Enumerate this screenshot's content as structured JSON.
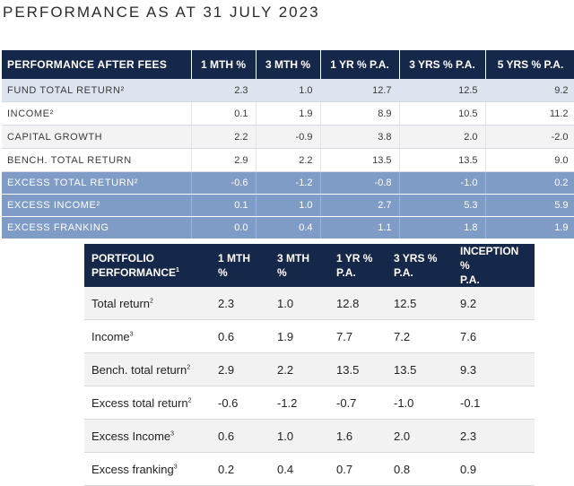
{
  "heading": "PERFORMANCE AS AT 31 JULY 2023",
  "after_fees": {
    "headers": [
      "PERFORMANCE AFTER FEES",
      "1 MTH %",
      "3 MTH %",
      "1 YR % P.A.",
      "3 YRS % P.A.",
      "5 YRS % P.A."
    ],
    "rows": [
      {
        "label": "FUND TOTAL RETURN²",
        "values": [
          "2.3",
          "1.0",
          "12.7",
          "12.5",
          "9.2"
        ]
      },
      {
        "label": "INCOME²",
        "values": [
          "0.1",
          "1.9",
          "8.9",
          "10.5",
          "11.2"
        ]
      },
      {
        "label": "CAPITAL GROWTH",
        "values": [
          "2.2",
          "-0.9",
          "3.8",
          "2.0",
          "-2.0"
        ]
      },
      {
        "label": "BENCH. TOTAL RETURN",
        "values": [
          "2.9",
          "2.2",
          "13.5",
          "13.5",
          "9.0"
        ]
      },
      {
        "label": "EXCESS TOTAL RETURN²",
        "values": [
          "-0.6",
          "-1.2",
          "-0.8",
          "-1.0",
          "0.2"
        ]
      },
      {
        "label": "EXCESS INCOME²",
        "values": [
          "0.1",
          "1.0",
          "2.7",
          "5.3",
          "5.9"
        ]
      },
      {
        "label": "EXCESS FRANKING",
        "values": [
          "0.0",
          "0.4",
          "1.1",
          "1.8",
          "1.9"
        ]
      }
    ]
  },
  "portfolio": {
    "headers": [
      {
        "l1": "PORTFOLIO",
        "l2": "PERFORMANCE",
        "sup": "1"
      },
      {
        "l1": "1 MTH",
        "l2": "%",
        "sup": ""
      },
      {
        "l1": "3 MTH",
        "l2": "%",
        "sup": ""
      },
      {
        "l1": "1 YR %",
        "l2": "P.A.",
        "sup": ""
      },
      {
        "l1": "3 YRS %",
        "l2": "P.A.",
        "sup": ""
      },
      {
        "l1": "INCEPTION %",
        "l2": "P.A.",
        "sup": ""
      }
    ],
    "rows": [
      {
        "label": "Total return",
        "sup": "2",
        "values": [
          "2.3",
          "1.0",
          "12.8",
          "12.5",
          "9.2"
        ]
      },
      {
        "label": "Income",
        "sup": "3",
        "values": [
          "0.6",
          "1.9",
          "7.7",
          "7.2",
          "7.6"
        ]
      },
      {
        "label": "Bench. total return",
        "sup": "2",
        "values": [
          "2.9",
          "2.2",
          "13.5",
          "13.5",
          "9.3"
        ]
      },
      {
        "label": "Excess total return",
        "sup": "2",
        "values": [
          "-0.6",
          "-1.2",
          "-0.7",
          "-1.0",
          "-0.1"
        ]
      },
      {
        "label": "Excess Income",
        "sup": "3",
        "values": [
          "0.6",
          "1.0",
          "1.6",
          "2.0",
          "2.3"
        ]
      },
      {
        "label": "Excess franking",
        "sup": "3",
        "values": [
          "0.2",
          "0.4",
          "0.7",
          "0.8",
          "0.9"
        ]
      }
    ]
  }
}
